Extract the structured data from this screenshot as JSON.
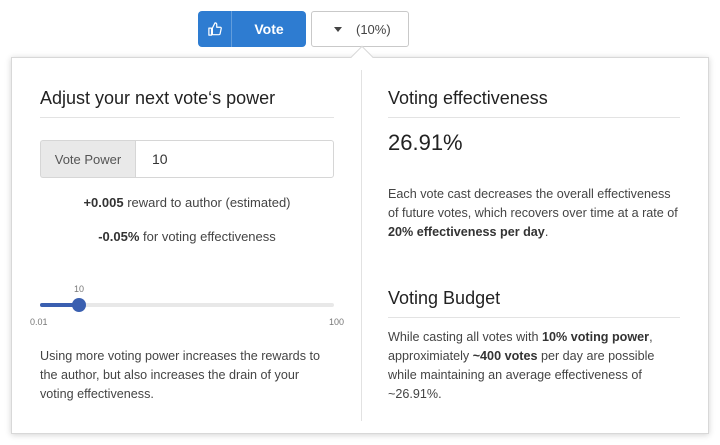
{
  "vote_button": {
    "label": "Vote",
    "icon": "thumbs-up-icon"
  },
  "power_dropdown": {
    "value": "(10%)"
  },
  "left": {
    "heading": "Adjust your next vote‘s power",
    "vote_power_label": "Vote Power",
    "vote_power_value": "10",
    "reward_amount": "+0.005",
    "reward_text": "reward to author (estimated)",
    "effect_amount": "-0.05%",
    "effect_text": "for voting effectiveness",
    "slider": {
      "value_label": "10",
      "min_label": "0.01",
      "max_label": "100",
      "value": 10,
      "min": 0.01,
      "max": 100
    },
    "description": "Using more voting power increases the rewards to the author, but also increases the drain of your voting effectiveness."
  },
  "right": {
    "effectiveness_heading": "Voting effectiveness",
    "effectiveness_value": "26.91%",
    "effectiveness_text_1": "Each vote cast decreases the overall effectiveness of future votes, which recovers over time at a rate of",
    "effectiveness_bold": "20% effectiveness per day",
    "effectiveness_text_2": ".",
    "budget_heading": "Voting Budget",
    "budget_text_1": "While casting all votes with",
    "budget_bold_1": "10% voting power",
    "budget_text_2": ", approximiately",
    "budget_bold_2": "~400 votes",
    "budget_text_3": "per day are possible while maintaining an average effectiveness of ~26.91%."
  },
  "colors": {
    "accent": "#2e7cd1",
    "slider": "#3a5fb0"
  }
}
